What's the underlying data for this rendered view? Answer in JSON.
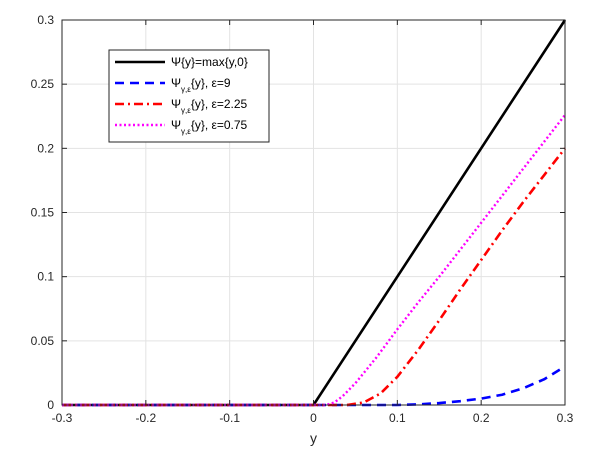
{
  "chart_data": {
    "type": "line",
    "title": "",
    "xlabel": "y",
    "ylabel": "",
    "xlim": [
      -0.3,
      0.3
    ],
    "ylim": [
      0,
      0.3
    ],
    "xticks": [
      "-0.3",
      "-0.2",
      "-0.1",
      "0",
      "0.1",
      "0.2",
      "0.3"
    ],
    "yticks": [
      "0",
      "0.05",
      "0.1",
      "0.15",
      "0.2",
      "0.25",
      "0.3"
    ],
    "grid": true,
    "legend_position": "top-left",
    "series": [
      {
        "name": "Ψ{y}=max{y,0}",
        "legend": {
          "pre": "Ψ{y}=max{y,0}",
          "sub": "",
          "post": ""
        },
        "color": "#000000",
        "style": "solid",
        "x": [
          -0.3,
          0.0,
          0.3
        ],
        "y": [
          0,
          0,
          0.3
        ]
      },
      {
        "name": "Ψ_{γ,ε}{y}, ε=9",
        "legend": {
          "pre": "Ψ",
          "sub": "γ,ε",
          "post": "{y}, ε=9"
        },
        "color": "#0000ff",
        "style": "dashed",
        "x": [
          -0.3,
          0.05,
          0.1,
          0.125,
          0.15,
          0.175,
          0.2,
          0.225,
          0.25,
          0.275,
          0.3
        ],
        "y": [
          0,
          0,
          0,
          0.0005,
          0.0015,
          0.003,
          0.005,
          0.008,
          0.013,
          0.02,
          0.03
        ]
      },
      {
        "name": "Ψ_{γ,ε}{y}, ε=2.25",
        "legend": {
          "pre": "Ψ",
          "sub": "γ,ε",
          "post": "{y}, ε=2.25"
        },
        "color": "#ff0000",
        "style": "dashdot",
        "x": [
          -0.3,
          0.04,
          0.06,
          0.08,
          0.1,
          0.125,
          0.15,
          0.175,
          0.2,
          0.225,
          0.25,
          0.275,
          0.3
        ],
        "y": [
          0,
          0,
          0.002,
          0.009,
          0.022,
          0.043,
          0.066,
          0.09,
          0.113,
          0.136,
          0.158,
          0.179,
          0.2
        ]
      },
      {
        "name": "Ψ_{γ,ε}{y}, ε=0.75",
        "legend": {
          "pre": "Ψ",
          "sub": "γ,ε",
          "post": "{y}, ε=0.75"
        },
        "color": "#ff00ff",
        "style": "dotted",
        "x": [
          -0.3,
          0.015,
          0.025,
          0.035,
          0.05,
          0.075,
          0.1,
          0.125,
          0.15,
          0.175,
          0.2,
          0.225,
          0.25,
          0.275,
          0.3
        ],
        "y": [
          0,
          0,
          0.002,
          0.007,
          0.017,
          0.037,
          0.059,
          0.08,
          0.1,
          0.121,
          0.142,
          0.163,
          0.184,
          0.205,
          0.226
        ]
      }
    ]
  }
}
